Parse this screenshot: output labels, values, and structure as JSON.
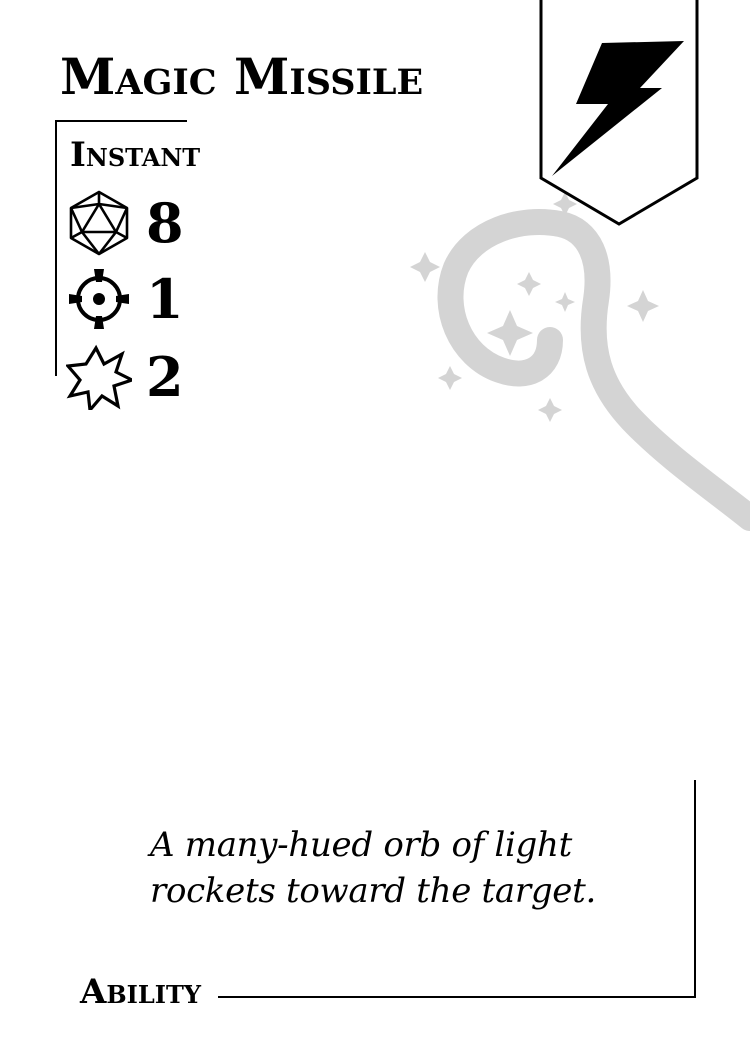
{
  "card": {
    "name": "Magic Missile",
    "speed": "Instant",
    "stats": [
      {
        "icon": "d20-dice-icon",
        "value": "8"
      },
      {
        "icon": "crosshair-target-icon",
        "value": "1"
      },
      {
        "icon": "starburst-impact-icon",
        "value": "2"
      }
    ],
    "type_icon": "lightning-bolt-icon",
    "background_art": "magic-wand-with-sparkles",
    "flavor_text": "A many-hued orb of light rockets toward the target.",
    "card_type": "Ability"
  },
  "colors": {
    "ink": "#000000",
    "paper": "#ffffff",
    "art_gray": "#d4d4d4"
  }
}
